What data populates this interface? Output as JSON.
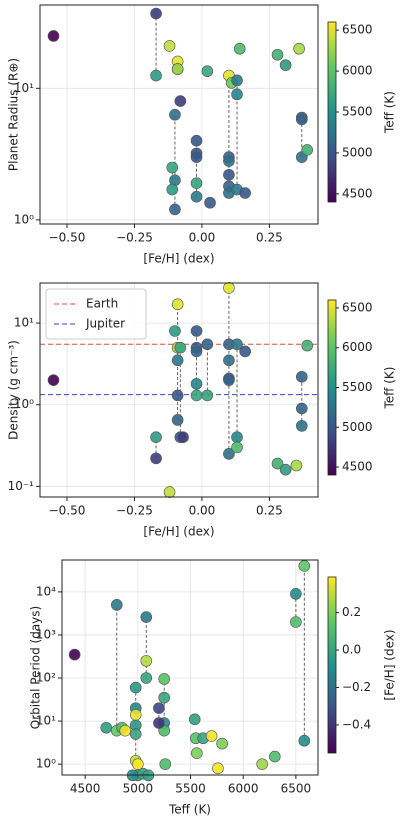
{
  "chart_data": [
    {
      "type": "scatter",
      "xlabel": "[Fe/H] (dex)",
      "ylabel": "Planet Radius (R⊕)",
      "ylog": true,
      "grid": true,
      "xlim": [
        -0.6,
        0.43
      ],
      "ylim": [
        0.93,
        43
      ],
      "xticks": [
        {
          "value": -0.5,
          "label": "−0.50"
        },
        {
          "value": -0.25,
          "label": "−0.25"
        },
        {
          "value": 0,
          "label": "0.00"
        },
        {
          "value": 0.25,
          "label": "0.25"
        }
      ],
      "yticks": [
        {
          "value": 1,
          "label": "10⁰"
        },
        {
          "value": 10,
          "label": "10¹"
        }
      ],
      "x": [
        -0.55,
        -0.17,
        -0.12,
        -0.17,
        -0.09,
        -0.09,
        -0.09,
        0.02,
        0.1,
        0.11,
        0.13,
        0.13,
        0.14,
        0.28,
        0.31,
        0.36,
        -0.08,
        -0.1,
        -0.1,
        -0.1,
        -0.11,
        -0.11,
        -0.02,
        -0.02,
        -0.02,
        -0.02,
        -0.02,
        0.03,
        0.1,
        0.1,
        0.1,
        0.1,
        0.1,
        0.13,
        0.16,
        0.37,
        0.37,
        0.37,
        0.39
      ],
      "y": [
        25,
        37,
        21,
        12.5,
        16,
        14,
        14,
        13.5,
        12.5,
        11,
        9,
        11.5,
        20,
        18,
        15,
        20,
        8,
        6.3,
        2,
        1.2,
        1.7,
        2.5,
        4,
        3.2,
        3,
        1.9,
        1.5,
        1.35,
        3.0,
        2.8,
        2.2,
        1.8,
        1.6,
        1.7,
        1.6,
        6.0,
        5.8,
        3.0,
        3.4
      ],
      "c": [
        4400,
        4800,
        6400,
        5600,
        6500,
        5500,
        6300,
        5700,
        6500,
        6100,
        5400,
        5300,
        5900,
        5800,
        5600,
        6300,
        4800,
        5200,
        5300,
        5100,
        5600,
        5700,
        5000,
        5000,
        5000,
        5700,
        5300,
        5000,
        5100,
        5200,
        5000,
        5100,
        5200,
        5300,
        5000,
        5100,
        5100,
        5200,
        5800
      ],
      "colorbar": {
        "label": "Teff (K)",
        "lim": [
          4400,
          6600
        ],
        "ticks": [
          4500,
          5000,
          5500,
          6000,
          6500
        ]
      }
    },
    {
      "type": "scatter",
      "xlabel": "[Fe/H] (dex)",
      "ylabel": "Density (g cm⁻³)",
      "ylog": true,
      "grid": true,
      "xlim": [
        -0.6,
        0.43
      ],
      "ylim": [
        0.074,
        31
      ],
      "xticks": [
        {
          "value": -0.5,
          "label": "−0.50"
        },
        {
          "value": -0.25,
          "label": "−0.25"
        },
        {
          "value": 0,
          "label": "0.00"
        },
        {
          "value": 0.25,
          "label": "0.25"
        }
      ],
      "yticks": [
        {
          "value": 0.1,
          "label": "10⁻¹"
        },
        {
          "value": 1,
          "label": "10⁰"
        },
        {
          "value": 10,
          "label": "10¹"
        }
      ],
      "hlines": [
        {
          "name": "Earth",
          "value": 5.51,
          "color": "#e8453c"
        },
        {
          "name": "Jupiter",
          "value": 1.33,
          "color": "#3b3bd9"
        }
      ],
      "legend": "upper left",
      "x": [
        -0.55,
        -0.17,
        -0.17,
        -0.12,
        -0.1,
        -0.09,
        -0.09,
        -0.08,
        -0.09,
        -0.09,
        -0.09,
        -0.08,
        -0.07,
        -0.02,
        -0.02,
        -0.02,
        -0.02,
        -0.02,
        0.02,
        0.02,
        0.1,
        0.1,
        0.1,
        0.1,
        0.1,
        0.1,
        0.13,
        0.16,
        0.13,
        0.13,
        0.28,
        0.31,
        0.35,
        0.37,
        0.37,
        0.37,
        0.39
      ],
      "y": [
        2.0,
        0.22,
        0.4,
        0.085,
        8,
        17,
        5,
        5,
        3.5,
        1.3,
        0.65,
        0.4,
        0.4,
        8,
        5,
        4.5,
        1.8,
        1.3,
        1.3,
        5.5,
        27,
        5.5,
        3.5,
        2.1,
        2.0,
        0.25,
        5.5,
        4.5,
        0.4,
        0.3,
        0.19,
        0.16,
        0.18,
        2.2,
        0.9,
        0.55,
        5.3
      ],
      "c": [
        4400,
        4800,
        5600,
        6400,
        5600,
        6500,
        6300,
        5700,
        5300,
        5000,
        5100,
        5000,
        4800,
        5000,
        5000,
        5100,
        5400,
        5700,
        5700,
        5100,
        6500,
        5100,
        5200,
        5000,
        5100,
        5200,
        5300,
        5000,
        5400,
        5900,
        5800,
        5600,
        6300,
        5100,
        5100,
        5200,
        5800
      ],
      "colorbar": {
        "label": "Teff (K)",
        "lim": [
          4400,
          6600
        ],
        "ticks": [
          4500,
          5000,
          5500,
          6000,
          6500
        ]
      }
    },
    {
      "type": "scatter",
      "xlabel": "Teff (K)",
      "ylabel": "Orbital Period (days)",
      "ylog": true,
      "grid": true,
      "xlim": [
        4280,
        6710
      ],
      "ylim": [
        0.56,
        55000
      ],
      "xticks": [
        4500,
        5000,
        5500,
        6000,
        6500
      ],
      "yticks": [
        {
          "value": 1,
          "label": "10⁰"
        },
        {
          "value": 10,
          "label": "10¹"
        },
        {
          "value": 100,
          "label": "10²"
        },
        {
          "value": 1000,
          "label": "10³"
        },
        {
          "value": 10000,
          "label": "10⁴"
        }
      ],
      "x": [
        4400,
        4800,
        5080,
        6580,
        6500,
        6500,
        5080,
        5080,
        4980,
        4980,
        4980,
        4980,
        4980,
        4980,
        5250,
        5250,
        5250,
        5250,
        5200,
        5200,
        4700,
        4800,
        4850,
        4880,
        5000,
        4950,
        5050,
        5100,
        5000,
        5260,
        5540,
        5550,
        5560,
        5620,
        5700,
        5800,
        5760,
        6180,
        6300,
        6580
      ],
      "y": [
        350,
        5000,
        2600,
        40000,
        9000,
        2000,
        250,
        100,
        60,
        20,
        8,
        5,
        1.2,
        14,
        95,
        35,
        9,
        6,
        20,
        9,
        7,
        6,
        7,
        6,
        0.55,
        0.55,
        0.6,
        0.55,
        1.0,
        1.0,
        11,
        4,
        1.8,
        4,
        4.5,
        3,
        0.8,
        1.0,
        1.5,
        3.5
      ],
      "c": [
        -0.55,
        -0.17,
        -0.17,
        0.14,
        -0.1,
        0.1,
        0.28,
        0.0,
        -0.05,
        -0.1,
        -0.05,
        0.0,
        0.3,
        0.35,
        0.13,
        0.0,
        -0.1,
        0.1,
        -0.35,
        -0.4,
        -0.02,
        0.16,
        0.1,
        0.37,
        -0.02,
        -0.1,
        0.0,
        -0.02,
        0.39,
        0.1,
        -0.02,
        0.13,
        0.2,
        0.0,
        0.37,
        0.2,
        0.37,
        0.25,
        0.1,
        -0.1
      ],
      "colorbar": {
        "label": "[Fe/H] (dex)",
        "lim": [
          -0.55,
          0.39
        ],
        "ticks": [
          {
            "value": -0.4,
            "label": "−0.4"
          },
          {
            "value": -0.2,
            "label": "−0.2"
          },
          {
            "value": 0,
            "label": "0.0"
          },
          0.2
        ]
      }
    }
  ]
}
